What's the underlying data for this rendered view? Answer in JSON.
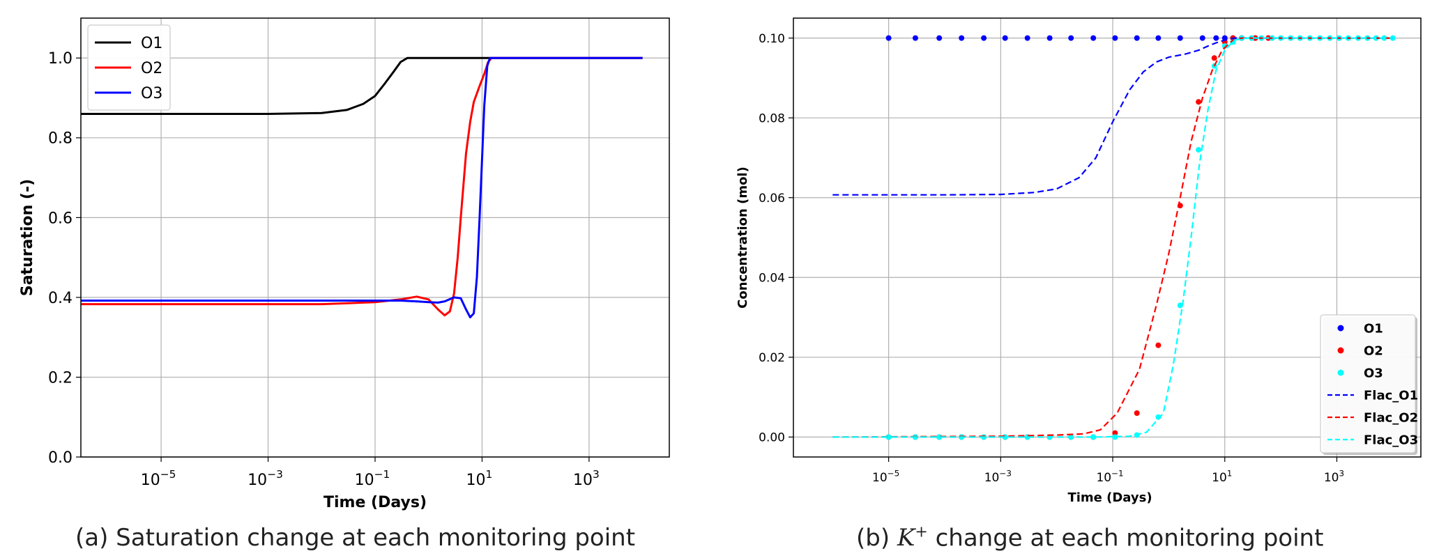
{
  "captions": {
    "a": "(a) Saturation change at each monitoring point",
    "b_prefix": "(b)",
    "b_symbol": "K",
    "b_symbol_sup": "+",
    "b_suffix": "change at each monitoring point"
  },
  "chart_data": [
    {
      "id": "saturation",
      "type": "line",
      "title": "",
      "xlabel": "Time (Days)",
      "ylabel": "Saturation (-)",
      "xscale": "log",
      "xlim_log10": [
        -6.5,
        4.5
      ],
      "ylim": [
        0,
        1.1
      ],
      "xticks": [
        {
          "e": -5,
          "label": "10",
          "sup": "−5"
        },
        {
          "e": -3,
          "label": "10",
          "sup": "−3"
        },
        {
          "e": -1,
          "label": "10",
          "sup": "−1"
        },
        {
          "e": 1,
          "label": "10",
          "sup": "1"
        },
        {
          "e": 3,
          "label": "10",
          "sup": "3"
        }
      ],
      "yticks": [
        {
          "v": 0.0,
          "label": "0.0"
        },
        {
          "v": 0.2,
          "label": "0.2"
        },
        {
          "v": 0.4,
          "label": "0.4"
        },
        {
          "v": 0.6,
          "label": "0.6"
        },
        {
          "v": 0.8,
          "label": "0.8"
        },
        {
          "v": 1.0,
          "label": "1.0"
        }
      ],
      "grid": true,
      "legend_position": "top-left",
      "series": [
        {
          "name": "O1",
          "color": "#000000",
          "style": "solid",
          "x": [
            3e-07,
            0.001,
            0.01,
            0.03,
            0.06,
            0.1,
            0.15,
            0.22,
            0.3,
            0.4,
            0.5,
            1,
            3,
            10,
            100,
            1000,
            10000
          ],
          "y": [
            0.86,
            0.86,
            0.862,
            0.87,
            0.885,
            0.905,
            0.935,
            0.965,
            0.99,
            1.0,
            1.0,
            1.0,
            1.0,
            1.0,
            1.0,
            1.0,
            1.0
          ]
        },
        {
          "name": "O2",
          "color": "#ff0000",
          "style": "solid",
          "x": [
            3e-07,
            0.01,
            0.1,
            0.3,
            0.6,
            1.0,
            1.5,
            2.0,
            2.5,
            3.0,
            3.5,
            4.0,
            5.0,
            6.0,
            7.0,
            9.0,
            11.0,
            13.0,
            15.0,
            100,
            10000
          ],
          "y": [
            0.383,
            0.383,
            0.388,
            0.395,
            0.402,
            0.395,
            0.37,
            0.355,
            0.365,
            0.41,
            0.5,
            0.6,
            0.76,
            0.84,
            0.89,
            0.93,
            0.96,
            0.99,
            1.0,
            1.0,
            1.0
          ]
        },
        {
          "name": "O3",
          "color": "#0000ff",
          "style": "solid",
          "x": [
            3e-07,
            0.01,
            0.1,
            0.3,
            0.6,
            1.0,
            1.5,
            2.0,
            3.0,
            4.0,
            5.0,
            6.0,
            7.0,
            8.0,
            9.0,
            10.0,
            11.0,
            12.5,
            14.0,
            100,
            10000
          ],
          "y": [
            0.392,
            0.392,
            0.392,
            0.392,
            0.39,
            0.388,
            0.387,
            0.39,
            0.4,
            0.398,
            0.37,
            0.35,
            0.36,
            0.45,
            0.6,
            0.75,
            0.88,
            0.98,
            1.0,
            1.0,
            1.0
          ]
        }
      ]
    },
    {
      "id": "concentration",
      "type": "line",
      "title": "",
      "xlabel": "Time (Days)",
      "ylabel": "Concentration (mol)",
      "xscale": "log",
      "xlim_log10": [
        -6.7,
        4.5
      ],
      "ylim": [
        -0.005,
        0.105
      ],
      "xticks": [
        {
          "e": -5,
          "label": "10",
          "sup": "−5"
        },
        {
          "e": -3,
          "label": "10",
          "sup": "−3"
        },
        {
          "e": -1,
          "label": "10",
          "sup": "−1"
        },
        {
          "e": 1,
          "label": "10",
          "sup": "1"
        },
        {
          "e": 3,
          "label": "10",
          "sup": "3"
        }
      ],
      "yticks": [
        {
          "v": 0.0,
          "label": "0.00"
        },
        {
          "v": 0.02,
          "label": "0.02"
        },
        {
          "v": 0.04,
          "label": "0.04"
        },
        {
          "v": 0.06,
          "label": "0.06"
        },
        {
          "v": 0.08,
          "label": "0.08"
        },
        {
          "v": 0.1,
          "label": "0.10"
        }
      ],
      "grid": true,
      "legend_position": "bottom-right",
      "series": [
        {
          "name": "O1",
          "color": "#0000ff",
          "style": "dots",
          "x": [
            1e-05,
            3e-05,
            8e-05,
            0.0002,
            0.0005,
            0.0012,
            0.003,
            0.0075,
            0.018,
            0.045,
            0.11,
            0.27,
            0.65,
            1.6,
            4,
            7,
            10,
            14,
            20,
            35,
            60
          ],
          "y": [
            0.1,
            0.1,
            0.1,
            0.1,
            0.1,
            0.1,
            0.1,
            0.1,
            0.1,
            0.1,
            0.1,
            0.1,
            0.1,
            0.1,
            0.1,
            0.1,
            0.1,
            0.1,
            0.1,
            0.1,
            0.1
          ]
        },
        {
          "name": "O2",
          "color": "#ff0000",
          "style": "dots",
          "x": [
            1e-05,
            3e-05,
            8e-05,
            0.0002,
            0.0005,
            0.0012,
            0.003,
            0.0075,
            0.018,
            0.045,
            0.11,
            0.27,
            0.65,
            1.6,
            3.4,
            6.5,
            10,
            14,
            20,
            35,
            60
          ],
          "y": [
            0.0,
            0.0,
            0.0,
            0.0,
            0.0,
            0.0,
            0.0,
            0.0,
            0.0,
            0.0,
            0.001,
            0.006,
            0.023,
            0.058,
            0.084,
            0.095,
            0.099,
            0.1,
            0.1,
            0.1,
            0.1
          ]
        },
        {
          "name": "O3",
          "color": "#00ffff",
          "style": "dots",
          "x": [
            1e-05,
            3e-05,
            8e-05,
            0.0002,
            0.0005,
            0.0012,
            0.003,
            0.0075,
            0.018,
            0.045,
            0.11,
            0.27,
            0.65,
            1.6,
            3.4,
            6.5,
            10,
            14,
            20,
            30,
            45,
            70,
            100,
            150,
            220,
            330,
            500,
            750,
            1100,
            1600,
            2400,
            3500,
            5000,
            7000,
            10000
          ],
          "y": [
            0.0,
            0.0,
            0.0,
            0.0,
            0.0,
            0.0,
            0.0,
            0.0,
            0.0,
            0.0,
            0.0,
            0.0005,
            0.005,
            0.033,
            0.072,
            0.093,
            0.098,
            0.099,
            0.1,
            0.1,
            0.1,
            0.1,
            0.1,
            0.1,
            0.1,
            0.1,
            0.1,
            0.1,
            0.1,
            0.1,
            0.1,
            0.1,
            0.1,
            0.1,
            0.1
          ]
        },
        {
          "name": "Flac_O1",
          "color": "#0000ff",
          "style": "dashed",
          "x": [
            1e-06,
            0.0001,
            0.001,
            0.004,
            0.01,
            0.025,
            0.05,
            0.1,
            0.2,
            0.35,
            0.6,
            1.0,
            2.0,
            3.5,
            5.0,
            7.0,
            10.0,
            15.0,
            100,
            10000
          ],
          "y": [
            0.0607,
            0.0607,
            0.0608,
            0.0613,
            0.0622,
            0.065,
            0.07,
            0.079,
            0.087,
            0.0915,
            0.094,
            0.0952,
            0.096,
            0.097,
            0.098,
            0.0988,
            0.0995,
            0.1,
            0.1,
            0.1
          ]
        },
        {
          "name": "Flac_O2",
          "color": "#ff0000",
          "style": "dashed",
          "x": [
            1e-06,
            0.001,
            0.01,
            0.03,
            0.06,
            0.12,
            0.3,
            0.6,
            1.0,
            1.6,
            2.5,
            4.0,
            6.0,
            9.0,
            14.0,
            20.0,
            100,
            10000
          ],
          "y": [
            0.0,
            0.0002,
            0.0005,
            0.0008,
            0.0018,
            0.006,
            0.017,
            0.033,
            0.046,
            0.06,
            0.074,
            0.085,
            0.092,
            0.097,
            0.0995,
            0.1,
            0.1,
            0.1
          ]
        },
        {
          "name": "Flac_O3",
          "color": "#00ffff",
          "style": "dashed",
          "x": [
            1e-06,
            0.001,
            0.05,
            0.2,
            0.4,
            0.8,
            1.2,
            1.8,
            2.5,
            3.5,
            5.0,
            7.0,
            10.0,
            15.0,
            25.0,
            100,
            10000
          ],
          "y": [
            0.0,
            0.0,
            0.0,
            0.0002,
            0.0012,
            0.006,
            0.018,
            0.034,
            0.05,
            0.068,
            0.082,
            0.092,
            0.097,
            0.0995,
            0.1,
            0.1,
            0.1
          ]
        }
      ]
    }
  ]
}
